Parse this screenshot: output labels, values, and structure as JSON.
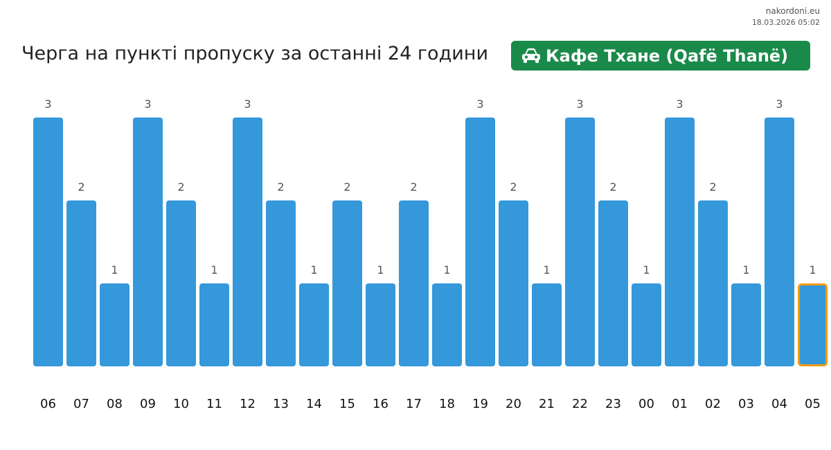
{
  "header": {
    "site": "nakordoni.eu",
    "timestamp": "18.03.2026 05:02",
    "title": "Черга на пункті пропуску за останні 24 години",
    "badge_label": "Кафе Тхане (Qafë Thanë)",
    "badge_icon": "car-icon"
  },
  "colors": {
    "bar": "#3498db",
    "highlight_border": "#f39c12",
    "badge": "#1a8a4a"
  },
  "chart_data": {
    "type": "bar",
    "title": "",
    "xlabel": "",
    "ylabel": "",
    "categories": [
      "06",
      "07",
      "08",
      "09",
      "10",
      "11",
      "12",
      "13",
      "14",
      "15",
      "16",
      "17",
      "18",
      "19",
      "20",
      "21",
      "22",
      "23",
      "00",
      "01",
      "02",
      "03",
      "04",
      "05"
    ],
    "values": [
      3,
      2,
      1,
      3,
      2,
      1,
      3,
      2,
      1,
      2,
      1,
      2,
      1,
      3,
      2,
      1,
      3,
      2,
      1,
      3,
      2,
      1,
      3,
      1
    ],
    "ylim": [
      0,
      3
    ],
    "grid": false,
    "legend": "none",
    "highlighted_category": "05"
  }
}
